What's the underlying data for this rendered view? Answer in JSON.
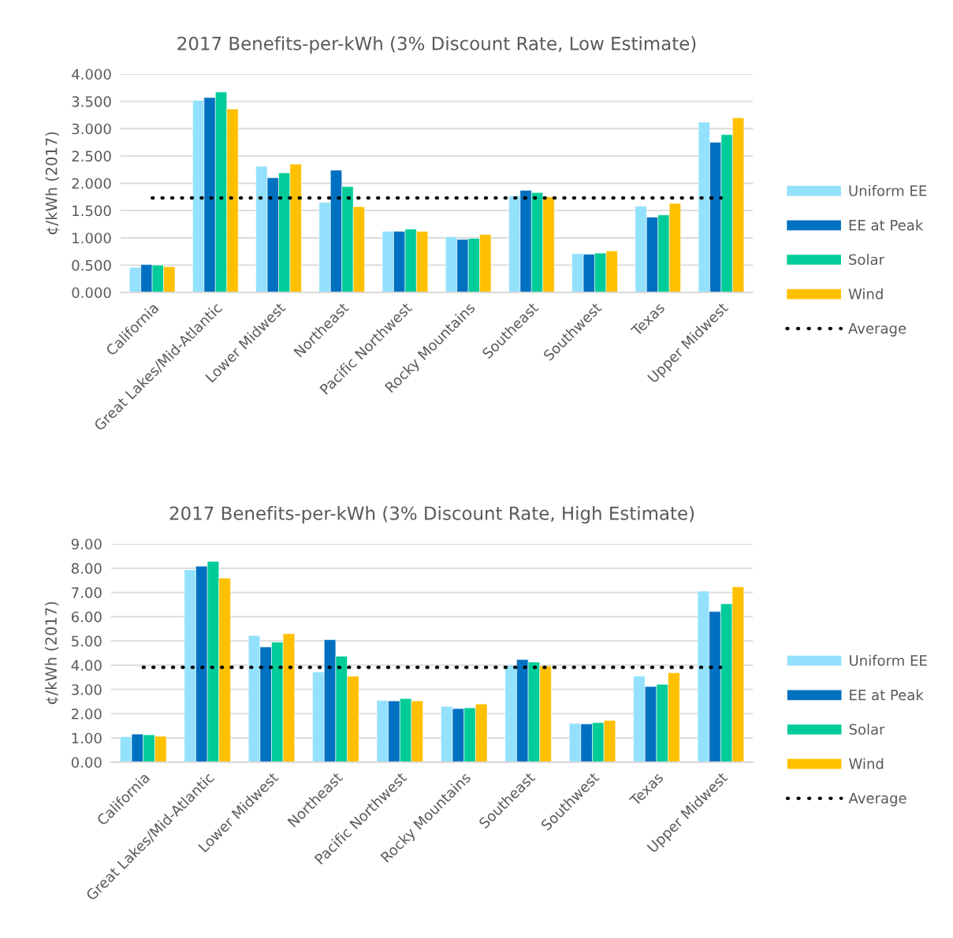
{
  "chart_data": [
    {
      "type": "bar",
      "title": "2017 Benefits-per-kWh (3% Discount Rate, Low Estimate)",
      "ylabel": "¢/kWh (2017)",
      "categories": [
        "California",
        "Great Lakes/Mid-Atlantic",
        "Lower Midwest",
        "Northeast",
        "Pacific Northwest",
        "Rocky Mountains",
        "Southeast",
        "Southwest",
        "Texas",
        "Upper Midwest"
      ],
      "series": [
        {
          "name": "Uniform EE",
          "color": "#93e1fd",
          "values": [
            0.46,
            3.52,
            2.31,
            1.65,
            1.12,
            1.02,
            1.77,
            0.71,
            1.58,
            3.12
          ]
        },
        {
          "name": "EE at Peak",
          "color": "#0070c0",
          "values": [
            0.51,
            3.57,
            2.1,
            2.24,
            1.12,
            0.97,
            1.87,
            0.7,
            1.38,
            2.75
          ]
        },
        {
          "name": "Solar",
          "color": "#00cc99",
          "values": [
            0.5,
            3.67,
            2.19,
            1.94,
            1.16,
            0.99,
            1.83,
            0.72,
            1.42,
            2.89
          ]
        },
        {
          "name": "Wind",
          "color": "#ffc000",
          "values": [
            0.47,
            3.36,
            2.35,
            1.57,
            1.12,
            1.06,
            1.75,
            0.76,
            1.63,
            3.2
          ]
        },
        {
          "name": "Average",
          "type": "line",
          "line_style": "dotted",
          "color": "#000000",
          "values": [
            1.73,
            1.73,
            1.73,
            1.73,
            1.73,
            1.73,
            1.73,
            1.73,
            1.73,
            1.73
          ]
        }
      ],
      "ylim": [
        0,
        4
      ],
      "yticks": [
        {
          "value": 0,
          "label": "0.000"
        },
        {
          "value": 0.5,
          "label": "0.500"
        },
        {
          "value": 1,
          "label": "1.000"
        },
        {
          "value": 1.5,
          "label": "1.500"
        },
        {
          "value": 2,
          "label": "2.000"
        },
        {
          "value": 2.5,
          "label": "2.500"
        },
        {
          "value": 3,
          "label": "3.000"
        },
        {
          "value": 3.5,
          "label": "3.500"
        },
        {
          "value": 4,
          "label": "4.000"
        }
      ],
      "grid": "y",
      "legend": "right"
    },
    {
      "type": "bar",
      "title": "2017 Benefits-per-kWh (3% Discount Rate, High Estimate)",
      "ylabel": "¢/kWh (2017)",
      "categories": [
        "California",
        "Great Lakes/Mid-Atlantic",
        "Lower Midwest",
        "Northeast",
        "Pacific Northwest",
        "Rocky Mountains",
        "Southeast",
        "Southwest",
        "Texas",
        "Upper Midwest"
      ],
      "series": [
        {
          "name": "Uniform EE",
          "color": "#93e1fd",
          "values": [
            1.05,
            7.93,
            5.22,
            3.72,
            2.54,
            2.3,
            4.0,
            1.6,
            3.55,
            7.05
          ]
        },
        {
          "name": "EE at Peak",
          "color": "#0070c0",
          "values": [
            1.16,
            8.08,
            4.75,
            5.05,
            2.53,
            2.21,
            4.23,
            1.58,
            3.12,
            6.21
          ]
        },
        {
          "name": "Solar",
          "color": "#00cc99",
          "values": [
            1.13,
            8.28,
            4.95,
            4.37,
            2.62,
            2.24,
            4.13,
            1.63,
            3.21,
            6.53
          ]
        },
        {
          "name": "Wind",
          "color": "#ffc000",
          "values": [
            1.07,
            7.59,
            5.3,
            3.54,
            2.53,
            2.4,
            3.97,
            1.72,
            3.69,
            7.23
          ]
        },
        {
          "name": "Average",
          "type": "line",
          "line_style": "dotted",
          "color": "#000000",
          "values": [
            3.91,
            3.91,
            3.91,
            3.91,
            3.91,
            3.91,
            3.91,
            3.91,
            3.91,
            3.91
          ]
        }
      ],
      "ylim": [
        0,
        9
      ],
      "yticks": [
        {
          "value": 0,
          "label": "0.00"
        },
        {
          "value": 1,
          "label": "1.00"
        },
        {
          "value": 2,
          "label": "2.00"
        },
        {
          "value": 3,
          "label": "3.00"
        },
        {
          "value": 4,
          "label": "4.00"
        },
        {
          "value": 5,
          "label": "5.00"
        },
        {
          "value": 6,
          "label": "6.00"
        },
        {
          "value": 7,
          "label": "7.00"
        },
        {
          "value": 8,
          "label": "8.00"
        },
        {
          "value": 9,
          "label": "9.00"
        }
      ],
      "grid": "y",
      "legend": "right"
    }
  ]
}
